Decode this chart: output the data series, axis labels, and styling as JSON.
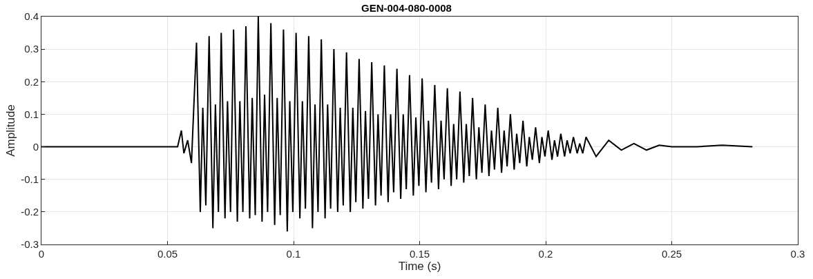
{
  "chart_data": {
    "type": "line",
    "title": "GEN-004-080-0008",
    "xlabel": "Time (s)",
    "ylabel": "Amplitude",
    "x": [
      0,
      0.005,
      0.01,
      0.015,
      0.02,
      0.025,
      0.03,
      0.035,
      0.04,
      0.045,
      0.05,
      0.054,
      0.0555,
      0.0565,
      0.058,
      0.0595,
      0.0615,
      0.063,
      0.064,
      0.0652,
      0.0665,
      0.068,
      0.069,
      0.0702,
      0.0713,
      0.0728,
      0.0738,
      0.075,
      0.0762,
      0.0777,
      0.0787,
      0.0799,
      0.0811,
      0.0826,
      0.0836,
      0.0848,
      0.086,
      0.0875,
      0.0885,
      0.0897,
      0.091,
      0.0925,
      0.0935,
      0.0947,
      0.096,
      0.0975,
      0.0985,
      0.0997,
      0.101,
      0.1025,
      0.1035,
      0.1047,
      0.106,
      0.1075,
      0.1085,
      0.1097,
      0.111,
      0.1125,
      0.1135,
      0.1147,
      0.116,
      0.1175,
      0.1185,
      0.1197,
      0.121,
      0.1225,
      0.1235,
      0.1247,
      0.126,
      0.1275,
      0.1285,
      0.1297,
      0.131,
      0.1325,
      0.1335,
      0.1347,
      0.136,
      0.1375,
      0.1385,
      0.1397,
      0.141,
      0.1425,
      0.1435,
      0.1447,
      0.146,
      0.1475,
      0.1485,
      0.1497,
      0.151,
      0.1525,
      0.1535,
      0.1547,
      0.156,
      0.1575,
      0.1585,
      0.1597,
      0.161,
      0.1625,
      0.1635,
      0.1647,
      0.166,
      0.1675,
      0.1685,
      0.1697,
      0.171,
      0.1725,
      0.1735,
      0.1747,
      0.176,
      0.1775,
      0.1785,
      0.1797,
      0.181,
      0.1825,
      0.1835,
      0.1847,
      0.186,
      0.1875,
      0.1885,
      0.1897,
      0.191,
      0.1925,
      0.1935,
      0.1947,
      0.196,
      0.1975,
      0.1985,
      0.1997,
      0.201,
      0.2025,
      0.2035,
      0.2047,
      0.206,
      0.2075,
      0.2085,
      0.2097,
      0.211,
      0.2125,
      0.2135,
      0.2147,
      0.216,
      0.22,
      0.225,
      0.23,
      0.235,
      0.24,
      0.245,
      0.25,
      0.26,
      0.27,
      0.282
    ],
    "values": [
      0,
      0,
      0,
      0,
      0,
      0,
      0,
      0,
      0,
      0,
      0,
      0,
      0.05,
      -0.02,
      0.02,
      -0.05,
      0.32,
      -0.2,
      0.12,
      -0.18,
      0.34,
      -0.25,
      0.13,
      -0.2,
      0.35,
      -0.22,
      0.14,
      -0.2,
      0.36,
      -0.23,
      0.14,
      -0.2,
      0.37,
      -0.22,
      0.15,
      -0.21,
      0.4,
      -0.23,
      0.16,
      -0.2,
      0.38,
      -0.24,
      0.15,
      -0.21,
      0.36,
      -0.26,
      0.14,
      -0.2,
      0.35,
      -0.22,
      0.14,
      -0.19,
      0.34,
      -0.25,
      0.13,
      -0.2,
      0.33,
      -0.22,
      0.13,
      -0.19,
      0.3,
      -0.2,
      0.12,
      -0.18,
      0.29,
      -0.2,
      0.12,
      -0.17,
      0.27,
      -0.19,
      0.11,
      -0.16,
      0.26,
      -0.18,
      0.1,
      -0.15,
      0.25,
      -0.17,
      0.1,
      -0.14,
      0.24,
      -0.16,
      0.1,
      -0.13,
      0.22,
      -0.15,
      0.09,
      -0.12,
      0.21,
      -0.14,
      0.08,
      -0.11,
      0.19,
      -0.13,
      0.08,
      -0.1,
      0.18,
      -0.12,
      0.07,
      -0.1,
      0.17,
      -0.11,
      0.07,
      -0.09,
      0.15,
      -0.1,
      0.06,
      -0.08,
      0.13,
      -0.09,
      0.05,
      -0.07,
      0.12,
      -0.08,
      0.05,
      -0.06,
      0.1,
      -0.07,
      0.04,
      -0.05,
      0.08,
      -0.06,
      0.03,
      -0.04,
      0.06,
      -0.05,
      0.03,
      -0.03,
      0.05,
      -0.04,
      0.02,
      -0.03,
      0.04,
      -0.03,
      0.02,
      -0.02,
      0.03,
      -0.02,
      0.01,
      -0.02,
      0.03,
      -0.03,
      0.02,
      -0.01,
      0.01,
      -0.01,
      0.005,
      0,
      0,
      0.005,
      0
    ],
    "color": "#000000",
    "xlim": [
      0,
      0.3
    ],
    "xticks": [
      0,
      0.05,
      0.1,
      0.15,
      0.2,
      0.25,
      0.3
    ],
    "ylim": [
      -0.3,
      0.4
    ],
    "yticks": [
      -0.3,
      -0.2,
      -0.1,
      0,
      0.1,
      0.2,
      0.3,
      0.4
    ],
    "grid": true,
    "legend": false,
    "marker": "none",
    "line_style": "solid"
  }
}
